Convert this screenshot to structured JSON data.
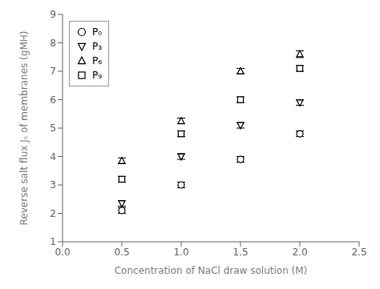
{
  "chart_data": {
    "type": "scatter",
    "x_label": "Concentration of NaCl draw solution (M)",
    "y_label": "Reverse salt flux Jₛ of membranes (gMH)",
    "x": [
      0.5,
      1.0,
      1.5,
      2.0
    ],
    "series": [
      {
        "name": "P₀",
        "color": "black",
        "marker": "circle",
        "values": [
          2.1,
          3.0,
          3.9,
          4.8
        ],
        "errors": [
          0.1,
          0.1,
          0.1,
          0.1
        ]
      },
      {
        "name": "P₃",
        "color": "black",
        "marker": "triangle-down",
        "values": [
          2.35,
          4.0,
          5.1,
          5.9
        ],
        "errors": [
          0.1,
          0.1,
          0.1,
          0.1
        ]
      },
      {
        "name": "P₆",
        "color": "black",
        "marker": "triangle-up",
        "values": [
          3.85,
          5.25,
          7.0,
          7.6
        ],
        "errors": [
          0.1,
          0.1,
          0.1,
          0.12
        ]
      },
      {
        "name": "P₉",
        "color": "black",
        "marker": "square",
        "values": [
          3.2,
          4.8,
          6.0,
          7.1
        ],
        "errors": [
          0.1,
          0.1,
          0.1,
          0.1
        ]
      }
    ],
    "xlim": [
      0.0,
      2.5
    ],
    "ylim": [
      1,
      9
    ],
    "xticks": [
      {
        "value": 0.0,
        "label": "0.0"
      },
      0.5,
      {
        "value": 1.0,
        "label": "1.0"
      },
      1.5,
      {
        "value": 2.0,
        "label": "2.0"
      },
      2.5
    ],
    "yticks": [
      1,
      2,
      3,
      4,
      5,
      6,
      7,
      8,
      9
    ],
    "grid": false,
    "legend": "upper left"
  }
}
